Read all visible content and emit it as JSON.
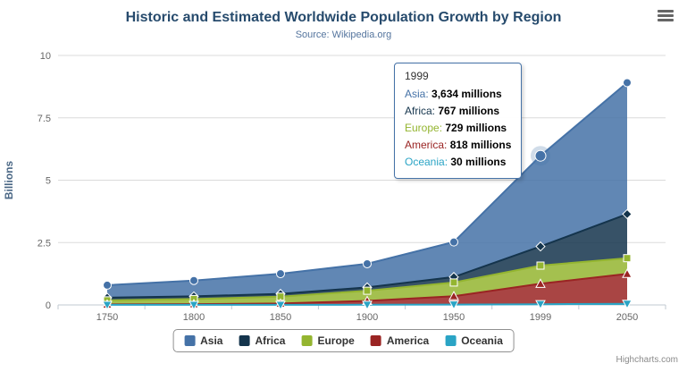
{
  "chart_data": {
    "type": "area",
    "stacking": "normal",
    "title": "Historic and Estimated Worldwide Population Growth by Region",
    "subtitle": "Source: Wikipedia.org",
    "categories": [
      "1750",
      "1800",
      "1850",
      "1900",
      "1950",
      "1999",
      "2050"
    ],
    "xlabel": "",
    "ylabel": "Billions",
    "ylim": [
      0,
      10
    ],
    "yticks": [
      0,
      2.5,
      5,
      7.5,
      10
    ],
    "grid": true,
    "legend_position": "bottom",
    "value_unit": "millions",
    "series": [
      {
        "name": "Asia",
        "color": "#4572A7",
        "marker": "circle",
        "values": [
          502,
          635,
          809,
          947,
          1402,
          3634,
          5268
        ]
      },
      {
        "name": "Africa",
        "color": "#14344C",
        "marker": "diamond",
        "values": [
          106,
          107,
          111,
          133,
          221,
          767,
          1766
        ]
      },
      {
        "name": "Europe",
        "color": "#94B530",
        "marker": "square",
        "values": [
          163,
          203,
          276,
          408,
          547,
          729,
          628
        ]
      },
      {
        "name": "America",
        "color": "#9A2423",
        "marker": "triangle",
        "values": [
          18,
          31,
          54,
          156,
          339,
          818,
          1201
        ]
      },
      {
        "name": "Oceania",
        "color": "#2AA4C5",
        "marker": "triangle-down",
        "values": [
          2,
          2,
          2,
          6,
          13,
          30,
          46
        ]
      }
    ]
  },
  "tooltip": {
    "category": "1999",
    "category_index": 5,
    "value_suffix": "millions",
    "highlight_series": "Asia"
  },
  "credits": {
    "label": "Highcharts.com"
  },
  "colors": {
    "title": "#274b6d",
    "subtitle": "#55759e",
    "grid": "#dbdbdb",
    "axis": "#c0c8d2",
    "tick_label": "#666666"
  }
}
